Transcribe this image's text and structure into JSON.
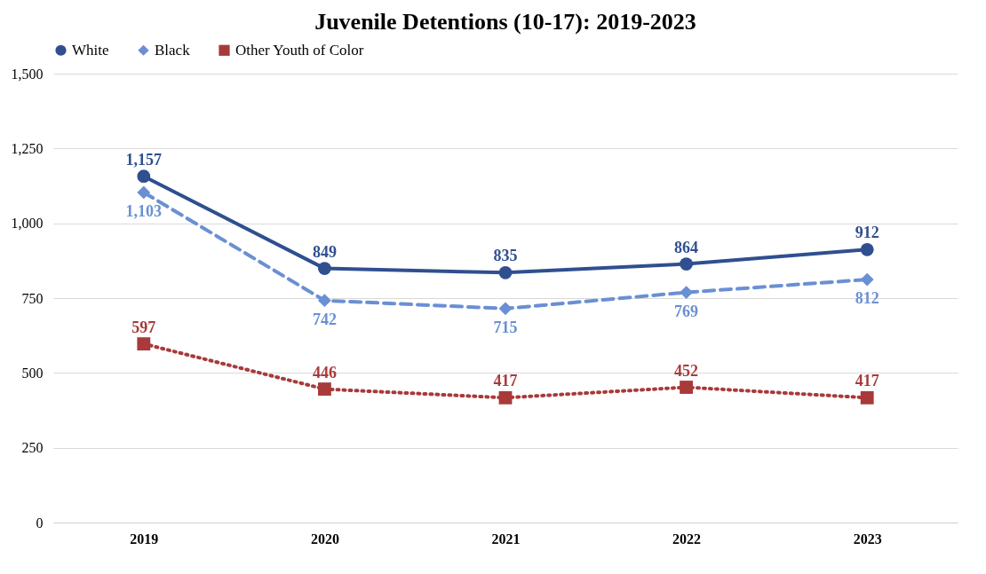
{
  "chart_data": {
    "type": "line",
    "title": "Juvenile Detentions (10-17): 2019-2023",
    "categories": [
      "2019",
      "2020",
      "2021",
      "2022",
      "2023"
    ],
    "series": [
      {
        "name": "White",
        "color": "#2f4f8f",
        "values": [
          1157,
          849,
          835,
          864,
          912
        ],
        "value_labels": [
          "1,157",
          "849",
          "835",
          "864",
          "912"
        ],
        "marker": "circle",
        "line_style": "solid"
      },
      {
        "name": "Black",
        "color": "#6a8fd3",
        "values": [
          1103,
          742,
          715,
          769,
          812
        ],
        "value_labels": [
          "1,103",
          "742",
          "715",
          "769",
          "812"
        ],
        "marker": "diamond",
        "line_style": "dashed"
      },
      {
        "name": "Other Youth of Color",
        "color": "#a83a3a",
        "values": [
          597,
          446,
          417,
          452,
          417
        ],
        "value_labels": [
          "597",
          "446",
          "417",
          "452",
          "417"
        ],
        "marker": "square",
        "line_style": "dotted"
      }
    ],
    "ylim": [
      0,
      1500
    ],
    "yticks": [
      0,
      250,
      500,
      750,
      {
        "value": 1000,
        "label": "1,000"
      },
      {
        "value": 1250,
        "label": "1,250"
      },
      {
        "value": 1500,
        "label": "1,500"
      }
    ],
    "grid": "y",
    "legend": "top"
  }
}
